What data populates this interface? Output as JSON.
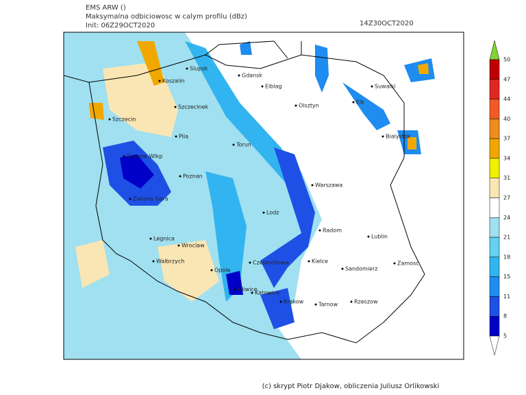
{
  "header": {
    "model": "EMS ARW ()",
    "field": "Maksymalna odbiciowosc w calym profilu (dBz)",
    "init": "Init: 06Z29OCT2020",
    "valid": "14Z30OCT2020"
  },
  "cities": [
    "Slupsk",
    "Gdansk",
    "Koszalin",
    "Elblag",
    "Suwalki",
    "Szczecinek",
    "Olsztyn",
    "Elk",
    "Szczecin",
    "Bialystok",
    "Pila",
    "Torun",
    "Gorzow Wlkp",
    "Poznan",
    "Warszawa",
    "Zielona Gora",
    "Lodz",
    "Radom",
    "Lublin",
    "Legnica",
    "Wroclaw",
    "Czestochowa",
    "Kielce",
    "Zamosc",
    "Walbrzych",
    "Opole",
    "Sandomierz",
    "Gliwice",
    "Katowice",
    "Krakow",
    "Tarnow",
    "Rzeszow"
  ],
  "colorbar": {
    "levels": [
      50,
      47,
      44,
      40,
      37,
      34,
      31,
      27,
      24,
      21,
      18,
      15,
      11,
      8,
      5
    ],
    "colors": [
      "#c00000",
      "#e02820",
      "#f05a28",
      "#f08c1e",
      "#f0a800",
      "#f0f000",
      "#fae6b4",
      "#ffffff",
      "#a0e0f0",
      "#64d2f0",
      "#32b4f0",
      "#1e8cf0",
      "#1e50e6",
      "#0000c8"
    ],
    "over_color": "#82d232",
    "under_color": "#ffffff"
  },
  "footer": "(c) skrypt Piotr Djakow, obliczenia Juliusz Orlikowski"
}
